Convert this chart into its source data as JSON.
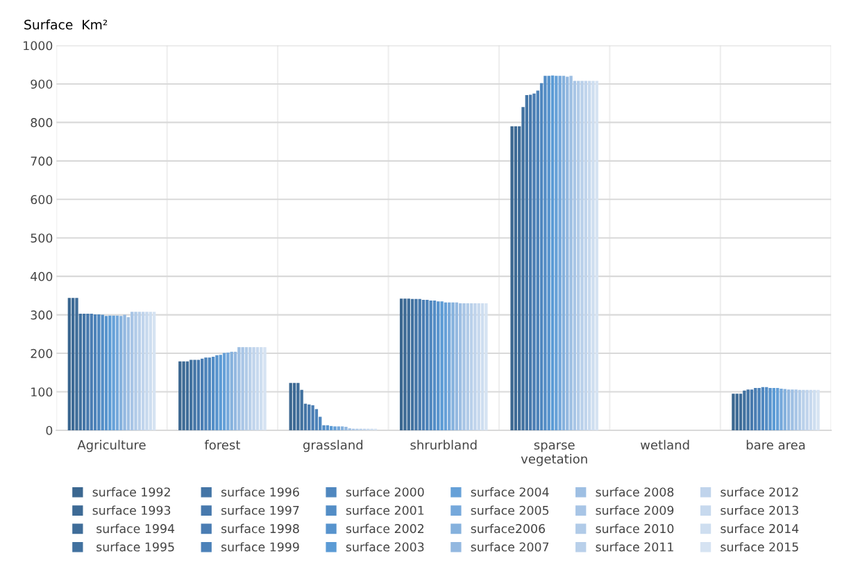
{
  "chart_data": {
    "type": "bar",
    "ylabel": "Surface  Km²",
    "categories": [
      "Agriculture",
      "forest",
      "grassland",
      "shrurbland",
      "sparse\nvegetation",
      "wetland",
      "bare area"
    ],
    "ylim": [
      0,
      1000
    ],
    "yticks": [
      0,
      100,
      200,
      300,
      400,
      500,
      600,
      700,
      800,
      900,
      1000
    ],
    "grid": true,
    "legend": "bottom",
    "series": [
      {
        "name": "surface 1992",
        "color": "#3b6790",
        "values": [
          344,
          179,
          123,
          342,
          790,
          0,
          95
        ]
      },
      {
        "name": "surface 1993",
        "color": "#3d6a95",
        "values": [
          344,
          179,
          123,
          342,
          790,
          0,
          95
        ]
      },
      {
        "name": " surface 1994",
        "color": "#3f6d99",
        "values": [
          344,
          179,
          123,
          342,
          790,
          0,
          95
        ]
      },
      {
        "name": " surface 1995",
        "color": "#41719f",
        "values": [
          303,
          183,
          105,
          341,
          840,
          0,
          103
        ]
      },
      {
        "name": "surface 1996",
        "color": "#4475a6",
        "values": [
          303,
          183,
          69,
          341,
          871,
          0,
          106
        ]
      },
      {
        "name": "surface 1997",
        "color": "#4779ad",
        "values": [
          303,
          183,
          67,
          341,
          872,
          0,
          106
        ]
      },
      {
        "name": "surface 1998",
        "color": "#4a7db3",
        "values": [
          303,
          186,
          65,
          339,
          875,
          0,
          110
        ]
      },
      {
        "name": "surface 1999",
        "color": "#4c82b9",
        "values": [
          301,
          189,
          55,
          339,
          883,
          0,
          110
        ]
      },
      {
        "name": "surface 2000",
        "color": "#4f87bf",
        "values": [
          301,
          189,
          35,
          337,
          902,
          0,
          112
        ]
      },
      {
        "name": "surface 2001",
        "color": "#538dc6",
        "values": [
          300,
          191,
          13,
          337,
          921,
          0,
          112
        ]
      },
      {
        "name": "surface 2002",
        "color": "#5793cd",
        "values": [
          297,
          195,
          13,
          335,
          921,
          0,
          110
        ]
      },
      {
        "name": "surface 2003",
        "color": "#5b9bd5",
        "values": [
          298,
          196,
          11,
          335,
          922,
          0,
          110
        ]
      },
      {
        "name": "surface 2004",
        "color": "#65a0d8",
        "values": [
          298,
          201,
          10,
          332,
          921,
          0,
          110
        ]
      },
      {
        "name": "surface 2005",
        "color": "#75a8db",
        "values": [
          298,
          202,
          10,
          332,
          921,
          0,
          108
        ]
      },
      {
        "name": "surface2006",
        "color": "#85b1dd",
        "values": [
          297,
          204,
          10,
          332,
          921,
          0,
          107
        ]
      },
      {
        "name": "surface 2007",
        "color": "#93b8e0",
        "values": [
          300,
          204,
          9,
          332,
          919,
          0,
          106
        ]
      },
      {
        "name": "surface 2008",
        "color": "#9ebfe3",
        "values": [
          294,
          216,
          5,
          330,
          921,
          0,
          106
        ]
      },
      {
        "name": "surface 2009",
        "color": "#a8c5e6",
        "values": [
          308,
          216,
          4,
          330,
          908,
          0,
          106
        ]
      },
      {
        "name": "surface 2010",
        "color": "#b1cbe8",
        "values": [
          308,
          216,
          4,
          330,
          908,
          0,
          105
        ]
      },
      {
        "name": "surface 2011",
        "color": "#b9d0ea",
        "values": [
          308,
          216,
          4,
          330,
          908,
          0,
          105
        ]
      },
      {
        "name": "surface 2012",
        "color": "#c0d4ec",
        "values": [
          308,
          216,
          4,
          330,
          908,
          0,
          105
        ]
      },
      {
        "name": "surface 2013",
        "color": "#c7d9ee",
        "values": [
          308,
          216,
          4,
          330,
          908,
          0,
          105
        ]
      },
      {
        "name": "surface 2014",
        "color": "#cedef0",
        "values": [
          308,
          216,
          4,
          330,
          908,
          0,
          105
        ]
      },
      {
        "name": "surface 2015",
        "color": "#d6e3f2",
        "values": [
          308,
          216,
          4,
          330,
          908,
          0,
          105
        ]
      }
    ]
  }
}
